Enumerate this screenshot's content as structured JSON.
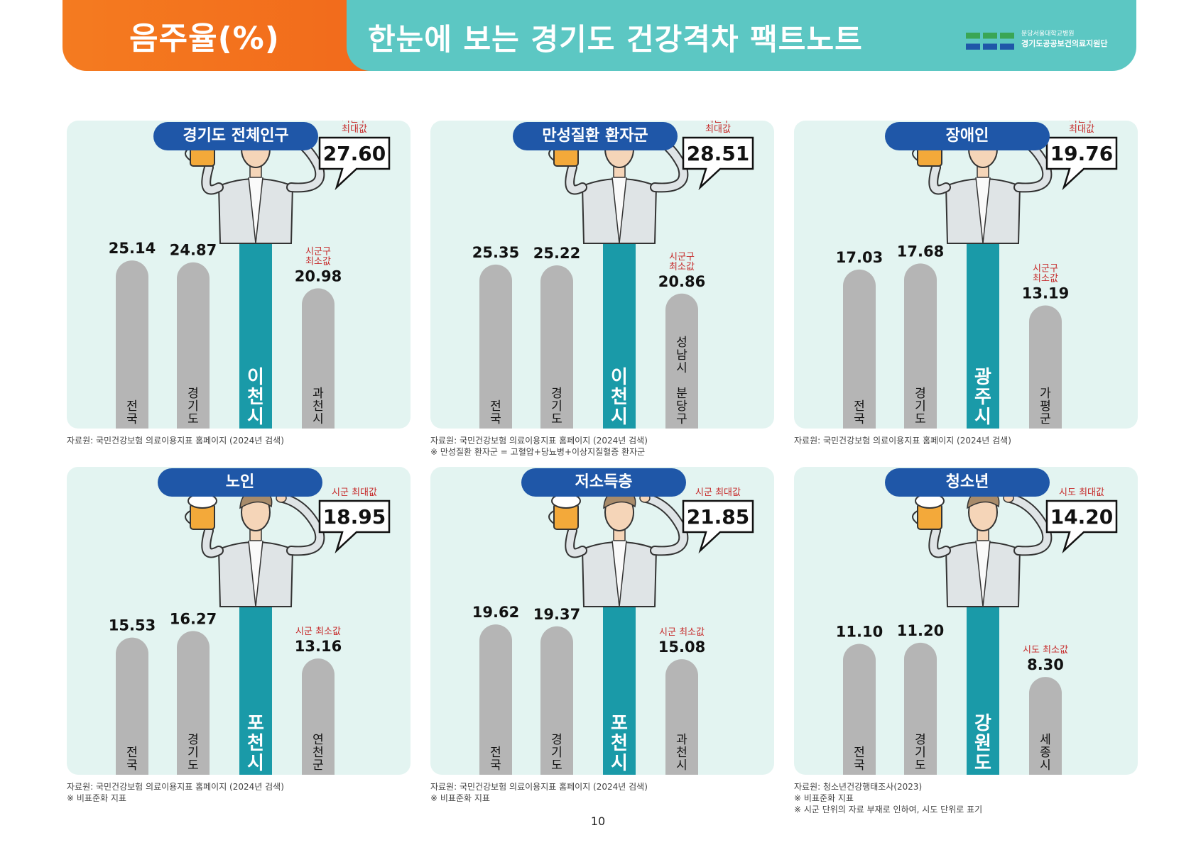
{
  "header": {
    "title": "음주율(%)",
    "subtitle": "한눈에 보는 경기도 건강격차 팩트노트",
    "logo_line1": "분당서울대학교병원",
    "logo_line2": "경기도공공보건의료지원단"
  },
  "page_number": "10",
  "colors": {
    "orange": "#f26a1b",
    "teal": "#5cc7c3",
    "panel_bg": "#e3f4f1",
    "title_pill": "#1f57a8",
    "bar_gray": "#b5b5b5",
    "bar_highlight": "#1a9aa8",
    "label_red": "#c62828"
  },
  "panels": [
    {
      "title": "경기도 전체인구",
      "sources": [
        "자료원: 국민건강보험 의료이용지표 홈페이지 (2024년 검색)"
      ]
    },
    {
      "title": "만성질환 환자군",
      "sources": [
        "자료원: 국민건강보험 의료이용지표 홈페이지 (2024년 검색)",
        "※ 만성질환 환자군 = 고혈압+당뇨병+이상지질혈증 환자군"
      ]
    },
    {
      "title": "장애인",
      "sources": [
        "자료원: 국민건강보험 의료이용지표 홈페이지 (2024년 검색)"
      ]
    },
    {
      "title": "노인",
      "sources": [
        "자료원: 국민건강보험 의료이용지표 홈페이지 (2024년 검색)",
        "※ 비표준화 지표"
      ]
    },
    {
      "title": "저소득층",
      "sources": [
        "자료원: 국민건강보험 의료이용지표 홈페이지 (2024년 검색)",
        "※ 비표준화 지표"
      ]
    },
    {
      "title": "청소년",
      "sources": [
        "자료원: 청소년건강행태조사(2023)",
        "※ 비표준화 지표",
        "※ 시군 단위의 자료 부재로 인하여, 시도 단위로 표기"
      ]
    }
  ],
  "chart_data": [
    {
      "type": "bar",
      "title": "경기도 전체인구",
      "categories": [
        "전국",
        "경기도",
        "이천시",
        "과천시"
      ],
      "values": [
        25.14,
        24.87,
        27.6,
        20.98
      ],
      "value_labels": [
        "25.14",
        "24.87",
        "27.60",
        "20.98"
      ],
      "highlight_index": 2,
      "max_label": "시군구\n최대값",
      "min_label": "시군구\n최소값"
    },
    {
      "type": "bar",
      "title": "만성질환 환자군",
      "categories": [
        "전국",
        "경기도",
        "이천시",
        "성남시 분당구"
      ],
      "values": [
        25.35,
        25.22,
        28.51,
        20.86
      ],
      "value_labels": [
        "25.35",
        "25.22",
        "28.51",
        "20.86"
      ],
      "highlight_index": 2,
      "max_label": "시군구\n최대값",
      "min_label": "시군구\n최소값"
    },
    {
      "type": "bar",
      "title": "장애인",
      "categories": [
        "전국",
        "경기도",
        "광주시",
        "가평군"
      ],
      "values": [
        17.03,
        17.68,
        19.76,
        13.19
      ],
      "value_labels": [
        "17.03",
        "17.68",
        "19.76",
        "13.19"
      ],
      "highlight_index": 2,
      "max_label": "시군구\n최대값",
      "min_label": "시군구\n최소값"
    },
    {
      "type": "bar",
      "title": "노인",
      "categories": [
        "전국",
        "경기도",
        "포천시",
        "연천군"
      ],
      "values": [
        15.53,
        16.27,
        18.95,
        13.16
      ],
      "value_labels": [
        "15.53",
        "16.27",
        "18.95",
        "13.16"
      ],
      "highlight_index": 2,
      "max_label": "시군 최대값",
      "min_label": "시군 최소값"
    },
    {
      "type": "bar",
      "title": "저소득층",
      "categories": [
        "전국",
        "경기도",
        "포천시",
        "과천시"
      ],
      "values": [
        19.62,
        19.37,
        21.85,
        15.08
      ],
      "value_labels": [
        "19.62",
        "19.37",
        "21.85",
        "15.08"
      ],
      "highlight_index": 2,
      "max_label": "시군 최대값",
      "min_label": "시군 최소값"
    },
    {
      "type": "bar",
      "title": "청소년",
      "categories": [
        "전국",
        "경기도",
        "강원도",
        "세종시"
      ],
      "values": [
        11.1,
        11.2,
        14.2,
        8.3
      ],
      "value_labels": [
        "11.10",
        "11.20",
        "14.20",
        "8.30"
      ],
      "highlight_index": 2,
      "max_label": "시도 최대값",
      "min_label": "시도 최소값"
    }
  ]
}
